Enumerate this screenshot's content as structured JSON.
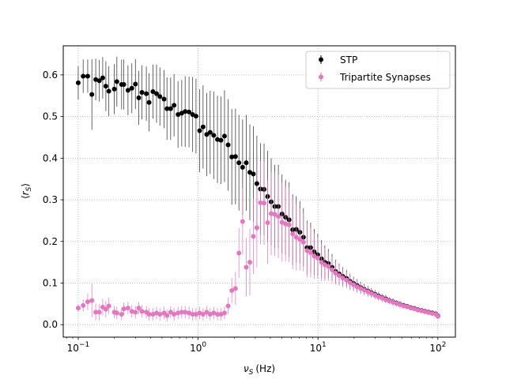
{
  "chart_data": {
    "type": "scatter",
    "xscale": "log",
    "xlim": [
      0.075,
      140
    ],
    "ylim": [
      -0.03,
      0.67
    ],
    "xlabel_symbol": "ν",
    "xlabel_sub": "S",
    "xlabel_unit": "(Hz)",
    "ylabel_open": "⟨",
    "ylabel_symbol": "r",
    "ylabel_sub": "S",
    "ylabel_close": "⟩",
    "grid": true,
    "legend_position": "top-right",
    "x_ticks": [
      {
        "value": 0.1,
        "base": "10",
        "exp": "−1"
      },
      {
        "value": 1,
        "base": "10",
        "exp": "0"
      },
      {
        "value": 10,
        "base": "10",
        "exp": "1"
      },
      {
        "value": 100,
        "base": "10",
        "exp": "2"
      }
    ],
    "y_ticks": [
      {
        "value": 0.0,
        "label": "0.0"
      },
      {
        "value": 0.1,
        "label": "0.1"
      },
      {
        "value": 0.2,
        "label": "0.2"
      },
      {
        "value": 0.3,
        "label": "0.3"
      },
      {
        "value": 0.4,
        "label": "0.4"
      },
      {
        "value": 0.5,
        "label": "0.5"
      },
      {
        "value": 0.6,
        "label": "0.6"
      }
    ],
    "series": [
      {
        "name": "STP",
        "color": "#000000",
        "points": [
          [
            0.1,
            0.581,
            0.04
          ],
          [
            0.11,
            0.597,
            0.04
          ],
          [
            0.12,
            0.597,
            0.04
          ],
          [
            0.13,
            0.553,
            0.085
          ],
          [
            0.14,
            0.589,
            0.05
          ],
          [
            0.15,
            0.586,
            0.05
          ],
          [
            0.16,
            0.593,
            0.05
          ],
          [
            0.17,
            0.573,
            0.06
          ],
          [
            0.18,
            0.561,
            0.06
          ],
          [
            0.2,
            0.566,
            0.06
          ],
          [
            0.21,
            0.584,
            0.06
          ],
          [
            0.23,
            0.577,
            0.06
          ],
          [
            0.24,
            0.577,
            0.06
          ],
          [
            0.26,
            0.563,
            0.06
          ],
          [
            0.28,
            0.568,
            0.06
          ],
          [
            0.3,
            0.578,
            0.06
          ],
          [
            0.32,
            0.545,
            0.065
          ],
          [
            0.34,
            0.558,
            0.065
          ],
          [
            0.37,
            0.555,
            0.065
          ],
          [
            0.39,
            0.534,
            0.07
          ],
          [
            0.42,
            0.56,
            0.065
          ],
          [
            0.45,
            0.555,
            0.07
          ],
          [
            0.48,
            0.548,
            0.07
          ],
          [
            0.52,
            0.542,
            0.07
          ],
          [
            0.55,
            0.519,
            0.075
          ],
          [
            0.59,
            0.519,
            0.075
          ],
          [
            0.63,
            0.527,
            0.075
          ],
          [
            0.68,
            0.505,
            0.08
          ],
          [
            0.73,
            0.508,
            0.08
          ],
          [
            0.78,
            0.512,
            0.085
          ],
          [
            0.84,
            0.511,
            0.085
          ],
          [
            0.9,
            0.505,
            0.09
          ],
          [
            0.96,
            0.501,
            0.09
          ],
          [
            1.03,
            0.466,
            0.1
          ],
          [
            1.1,
            0.475,
            0.1
          ],
          [
            1.18,
            0.457,
            0.1
          ],
          [
            1.26,
            0.462,
            0.1
          ],
          [
            1.35,
            0.455,
            0.105
          ],
          [
            1.45,
            0.445,
            0.105
          ],
          [
            1.55,
            0.443,
            0.105
          ],
          [
            1.66,
            0.453,
            0.11
          ],
          [
            1.78,
            0.432,
            0.11
          ],
          [
            1.91,
            0.403,
            0.115
          ],
          [
            2.05,
            0.404,
            0.115
          ],
          [
            2.19,
            0.389,
            0.115
          ],
          [
            2.35,
            0.378,
            0.115
          ],
          [
            2.52,
            0.389,
            0.115
          ],
          [
            2.7,
            0.366,
            0.115
          ],
          [
            2.89,
            0.362,
            0.115
          ],
          [
            3.09,
            0.339,
            0.115
          ],
          [
            3.31,
            0.326,
            0.11
          ],
          [
            3.55,
            0.325,
            0.11
          ],
          [
            3.8,
            0.308,
            0.11
          ],
          [
            4.07,
            0.295,
            0.105
          ],
          [
            4.36,
            0.284,
            0.1
          ],
          [
            4.67,
            0.284,
            0.1
          ],
          [
            5.01,
            0.266,
            0.095
          ],
          [
            5.36,
            0.258,
            0.09
          ],
          [
            5.74,
            0.252,
            0.09
          ],
          [
            6.15,
            0.228,
            0.085
          ],
          [
            6.59,
            0.229,
            0.08
          ],
          [
            7.06,
            0.222,
            0.075
          ],
          [
            7.56,
            0.21,
            0.07
          ],
          [
            8.1,
            0.185,
            0.065
          ],
          [
            8.68,
            0.185,
            0.06
          ],
          [
            9.29,
            0.175,
            0.055
          ],
          [
            9.95,
            0.168,
            0.05
          ],
          [
            10.7,
            0.158,
            0.045
          ],
          [
            11.4,
            0.15,
            0.04
          ],
          [
            12.2,
            0.147,
            0.035
          ],
          [
            13.1,
            0.138,
            0.032
          ],
          [
            14.0,
            0.128,
            0.028
          ],
          [
            15.0,
            0.122,
            0.025
          ],
          [
            16.1,
            0.116,
            0.022
          ],
          [
            17.3,
            0.111,
            0.02
          ],
          [
            18.5,
            0.104,
            0.018
          ],
          [
            19.8,
            0.099,
            0.016
          ],
          [
            21.2,
            0.094,
            0.015
          ],
          [
            22.7,
            0.089,
            0.014
          ],
          [
            24.3,
            0.085,
            0.013
          ],
          [
            26.1,
            0.081,
            0.012
          ],
          [
            27.9,
            0.077,
            0.011
          ],
          [
            29.9,
            0.073,
            0.01
          ],
          [
            32.0,
            0.069,
            0.01
          ],
          [
            34.3,
            0.065,
            0.009
          ],
          [
            36.7,
            0.062,
            0.009
          ],
          [
            39.3,
            0.058,
            0.008
          ],
          [
            42.1,
            0.055,
            0.008
          ],
          [
            45.1,
            0.052,
            0.007
          ],
          [
            48.3,
            0.049,
            0.007
          ],
          [
            51.8,
            0.046,
            0.006
          ],
          [
            55.4,
            0.044,
            0.006
          ],
          [
            59.4,
            0.041,
            0.005
          ],
          [
            63.6,
            0.039,
            0.005
          ],
          [
            68.1,
            0.036,
            0.005
          ],
          [
            73.0,
            0.034,
            0.004
          ],
          [
            78.2,
            0.032,
            0.004
          ],
          [
            83.7,
            0.03,
            0.004
          ],
          [
            89.7,
            0.028,
            0.004
          ],
          [
            96.0,
            0.026,
            0.003
          ],
          [
            100.0,
            0.021,
            0.003
          ]
        ]
      },
      {
        "name": "Tripartite Synapses",
        "color": "#e377c2",
        "points": [
          [
            0.1,
            0.04,
            0.01
          ],
          [
            0.11,
            0.046,
            0.015
          ],
          [
            0.12,
            0.055,
            0.02
          ],
          [
            0.13,
            0.058,
            0.04
          ],
          [
            0.14,
            0.03,
            0.02
          ],
          [
            0.15,
            0.03,
            0.02
          ],
          [
            0.16,
            0.042,
            0.02
          ],
          [
            0.17,
            0.037,
            0.02
          ],
          [
            0.18,
            0.045,
            0.02
          ],
          [
            0.2,
            0.03,
            0.015
          ],
          [
            0.21,
            0.028,
            0.015
          ],
          [
            0.23,
            0.025,
            0.015
          ],
          [
            0.24,
            0.038,
            0.015
          ],
          [
            0.26,
            0.04,
            0.015
          ],
          [
            0.28,
            0.032,
            0.015
          ],
          [
            0.3,
            0.03,
            0.015
          ],
          [
            0.32,
            0.04,
            0.015
          ],
          [
            0.34,
            0.032,
            0.015
          ],
          [
            0.37,
            0.03,
            0.015
          ],
          [
            0.39,
            0.025,
            0.015
          ],
          [
            0.42,
            0.025,
            0.015
          ],
          [
            0.45,
            0.028,
            0.015
          ],
          [
            0.48,
            0.025,
            0.015
          ],
          [
            0.52,
            0.028,
            0.015
          ],
          [
            0.55,
            0.022,
            0.015
          ],
          [
            0.59,
            0.03,
            0.015
          ],
          [
            0.63,
            0.025,
            0.015
          ],
          [
            0.68,
            0.028,
            0.015
          ],
          [
            0.73,
            0.03,
            0.015
          ],
          [
            0.78,
            0.03,
            0.015
          ],
          [
            0.84,
            0.028,
            0.015
          ],
          [
            0.9,
            0.025,
            0.015
          ],
          [
            0.96,
            0.025,
            0.015
          ],
          [
            1.03,
            0.028,
            0.015
          ],
          [
            1.1,
            0.025,
            0.015
          ],
          [
            1.18,
            0.03,
            0.015
          ],
          [
            1.26,
            0.025,
            0.015
          ],
          [
            1.35,
            0.028,
            0.015
          ],
          [
            1.45,
            0.025,
            0.015
          ],
          [
            1.55,
            0.025,
            0.015
          ],
          [
            1.66,
            0.028,
            0.015
          ],
          [
            1.78,
            0.045,
            0.02
          ],
          [
            1.91,
            0.082,
            0.03
          ],
          [
            2.05,
            0.087,
            0.04
          ],
          [
            2.19,
            0.172,
            0.06
          ],
          [
            2.35,
            0.248,
            0.08
          ],
          [
            2.52,
            0.138,
            0.07
          ],
          [
            2.7,
            0.15,
            0.08
          ],
          [
            2.89,
            0.212,
            0.09
          ],
          [
            3.09,
            0.233,
            0.095
          ],
          [
            3.31,
            0.293,
            0.1
          ],
          [
            3.55,
            0.292,
            0.1
          ],
          [
            3.8,
            0.245,
            0.1
          ],
          [
            4.07,
            0.267,
            0.1
          ],
          [
            4.36,
            0.265,
            0.1
          ],
          [
            4.67,
            0.26,
            0.1
          ],
          [
            5.01,
            0.246,
            0.095
          ],
          [
            5.36,
            0.242,
            0.09
          ],
          [
            5.74,
            0.24,
            0.09
          ],
          [
            6.15,
            0.218,
            0.085
          ],
          [
            6.59,
            0.21,
            0.08
          ],
          [
            7.06,
            0.205,
            0.075
          ],
          [
            7.56,
            0.198,
            0.07
          ],
          [
            8.1,
            0.178,
            0.065
          ],
          [
            8.68,
            0.173,
            0.06
          ],
          [
            9.29,
            0.165,
            0.055
          ],
          [
            9.95,
            0.16,
            0.05
          ],
          [
            10.7,
            0.15,
            0.045
          ],
          [
            11.4,
            0.144,
            0.04
          ],
          [
            12.2,
            0.14,
            0.035
          ],
          [
            13.1,
            0.132,
            0.032
          ],
          [
            14.0,
            0.124,
            0.028
          ],
          [
            15.0,
            0.118,
            0.025
          ],
          [
            16.1,
            0.112,
            0.022
          ],
          [
            17.3,
            0.107,
            0.02
          ],
          [
            18.5,
            0.101,
            0.018
          ],
          [
            19.8,
            0.096,
            0.016
          ],
          [
            21.2,
            0.091,
            0.015
          ],
          [
            22.7,
            0.087,
            0.014
          ],
          [
            24.3,
            0.083,
            0.013
          ],
          [
            26.1,
            0.079,
            0.012
          ],
          [
            27.9,
            0.075,
            0.011
          ],
          [
            29.9,
            0.071,
            0.01
          ],
          [
            32.0,
            0.067,
            0.01
          ],
          [
            34.3,
            0.064,
            0.009
          ],
          [
            36.7,
            0.06,
            0.009
          ],
          [
            39.3,
            0.057,
            0.008
          ],
          [
            42.1,
            0.054,
            0.008
          ],
          [
            45.1,
            0.051,
            0.007
          ],
          [
            48.3,
            0.048,
            0.007
          ],
          [
            51.8,
            0.045,
            0.006
          ],
          [
            55.4,
            0.043,
            0.006
          ],
          [
            59.4,
            0.04,
            0.005
          ],
          [
            63.6,
            0.038,
            0.005
          ],
          [
            68.1,
            0.035,
            0.005
          ],
          [
            73.0,
            0.033,
            0.004
          ],
          [
            78.2,
            0.031,
            0.004
          ],
          [
            83.7,
            0.029,
            0.004
          ],
          [
            89.7,
            0.027,
            0.004
          ],
          [
            96.0,
            0.025,
            0.003
          ],
          [
            100.0,
            0.02,
            0.003
          ]
        ]
      }
    ]
  }
}
